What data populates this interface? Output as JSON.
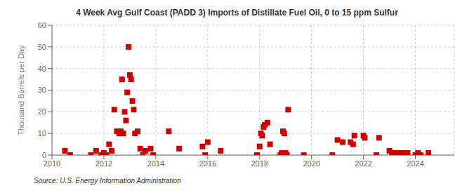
{
  "chart_data": {
    "type": "scatter",
    "title": "4 Week Avg Gulf Coast (PADD 3) Imports of Distillate Fuel Oil, 0 to 15 ppm Sulfur",
    "y_label": "Thousand Barrels per Day",
    "annotations": [
      "Source: U.S. Energy Information Administration"
    ],
    "x": [
      2010.5,
      2010.7,
      2011.5,
      2011.7,
      2011.9,
      2012.0,
      2012.1,
      2012.2,
      2012.3,
      2012.4,
      2012.5,
      2012.6,
      2012.65,
      2012.7,
      2012.75,
      2012.8,
      2012.85,
      2012.9,
      2012.95,
      2013.0,
      2013.05,
      2013.1,
      2013.15,
      2013.2,
      2013.3,
      2013.4,
      2013.5,
      2013.6,
      2013.8,
      2013.9,
      2014.5,
      2014.9,
      2015.8,
      2015.9,
      2016.0,
      2016.5,
      2017.9,
      2018.0,
      2018.05,
      2018.1,
      2018.15,
      2018.2,
      2018.3,
      2018.4,
      2018.8,
      2018.85,
      2018.9,
      2018.95,
      2019.0,
      2019.05,
      2019.1,
      2019.7,
      2020.8,
      2021.0,
      2021.2,
      2021.5,
      2021.6,
      2021.65,
      2022.0,
      2022.05,
      2022.5,
      2022.6,
      2023.0,
      2023.1,
      2023.2,
      2023.3,
      2023.5,
      2023.6,
      2023.7,
      2024.0,
      2024.1,
      2024.2,
      2024.5
    ],
    "values": [
      2,
      0,
      0,
      2,
      0,
      1,
      0,
      5,
      2,
      21,
      11,
      10,
      11,
      35,
      10,
      20,
      16,
      29,
      50,
      37,
      35,
      25,
      21,
      10,
      11,
      3,
      0,
      2,
      3,
      0,
      11,
      3,
      4,
      0,
      6,
      2,
      0,
      4,
      10,
      9,
      13,
      14,
      15,
      5,
      0,
      1,
      11,
      10,
      1,
      0,
      21,
      0,
      0,
      7,
      6,
      6,
      5,
      9,
      9,
      8,
      0,
      8,
      2,
      1,
      0,
      1,
      1,
      0,
      1,
      0,
      1,
      0,
      1
    ],
    "color": "#cc0000",
    "marker": "square",
    "xlim": [
      2010,
      2025.5
    ],
    "ylim": [
      0,
      60
    ],
    "xticks": [
      2010,
      2012,
      2014,
      2016,
      2018,
      2020,
      2022,
      2024
    ],
    "yticks": [
      0,
      10,
      20,
      30,
      40,
      50,
      60
    ],
    "grid": true
  }
}
